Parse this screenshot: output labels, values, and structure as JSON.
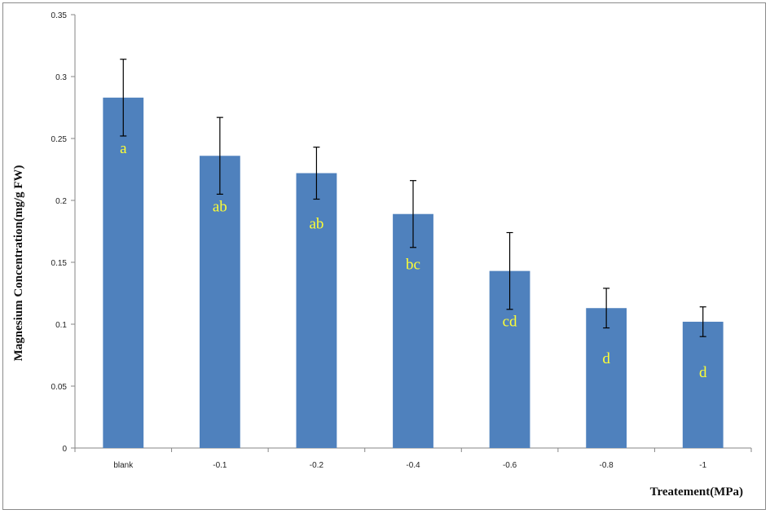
{
  "chart_data": {
    "type": "bar",
    "title": "",
    "xlabel": "Treatement(MPa)",
    "ylabel": "Magnesium Concentration(mg/g FW)",
    "categories": [
      "blank",
      "-0.1",
      "-0.2",
      "-0.4",
      "-0.6",
      "-0.8",
      "-1"
    ],
    "series": [
      {
        "values": [
          0.283,
          0.236,
          0.222,
          0.189,
          0.143,
          0.113,
          0.102
        ],
        "errors": [
          0.031,
          0.031,
          0.021,
          0.027,
          0.031,
          0.016,
          0.012
        ],
        "labels": [
          "a",
          "ab",
          "ab",
          "bc",
          "cd",
          "d",
          "d"
        ]
      }
    ],
    "ylim": [
      0,
      0.35
    ],
    "yticks": [
      "0",
      "0.05",
      "0.1",
      "0.15",
      "0.2",
      "0.25",
      "0.3",
      "0.35"
    ],
    "grid": false,
    "legend": "none",
    "colors": {
      "bar": "#4f81bd",
      "label": "#ffff33",
      "axis": "#868686"
    }
  }
}
